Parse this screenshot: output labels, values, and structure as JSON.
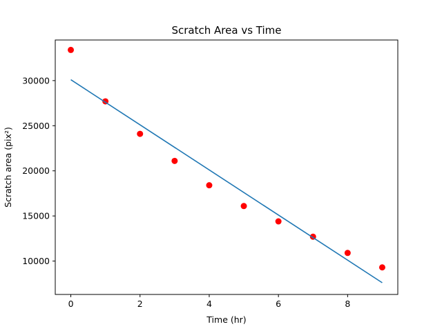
{
  "chart_data": {
    "type": "scatter",
    "title": "Scratch Area vs Time",
    "xlabel": "Time (hr)",
    "ylabel": "Scratch area (pix²)",
    "xlim": [
      -0.45,
      9.45
    ],
    "ylim": [
      6300,
      34500
    ],
    "xticks": [
      0,
      2,
      4,
      6,
      8
    ],
    "yticks": [
      10000,
      15000,
      20000,
      25000,
      30000
    ],
    "grid": false,
    "series": [
      {
        "kind": "scatter",
        "color": "#ff0000",
        "x": [
          0,
          1,
          2,
          3,
          4,
          5,
          6,
          7,
          8,
          9
        ],
        "y": [
          33400,
          27700,
          24100,
          21100,
          18400,
          16100,
          14400,
          12700,
          10900,
          9300
        ]
      },
      {
        "kind": "line",
        "color": "#1f77b4",
        "x": [
          0,
          9
        ],
        "y": [
          30100,
          7600
        ]
      }
    ]
  }
}
